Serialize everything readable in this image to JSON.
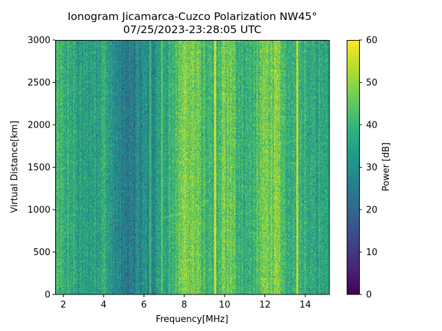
{
  "chart_data": {
    "type": "heatmap",
    "title_line1": "Ionogram Jicamarca-Cuzco Polarization NW45°",
    "title_line2": "07/25/2023-23:28:05 UTC",
    "xlabel": "Frequency[MHz]",
    "ylabel": "Virtual Distance[km]",
    "xlim": [
      1.6,
      15.2
    ],
    "ylim": [
      0,
      3000
    ],
    "x_ticks": [
      2,
      4,
      6,
      8,
      10,
      12,
      14
    ],
    "x_tick_labels": [
      "2",
      "4",
      "6",
      "8",
      "10",
      "12",
      "14"
    ],
    "y_ticks": [
      0,
      500,
      1000,
      1500,
      2000,
      2500,
      3000
    ],
    "y_tick_labels": [
      "0",
      "500",
      "1000",
      "1500",
      "2000",
      "2500",
      "3000"
    ],
    "colorbar": {
      "label": "Power [dB]",
      "colormap": "viridis",
      "vmin": 0,
      "vmax": 60,
      "ticks": [
        0,
        10,
        20,
        30,
        40,
        50,
        60
      ],
      "tick_labels": [
        "0",
        "10",
        "20",
        "30",
        "40",
        "50",
        "60"
      ]
    },
    "band_profile": {
      "frequency_mhz": [
        1.6,
        2.0,
        2.6,
        3.0,
        3.5,
        4.0,
        4.5,
        5.0,
        5.5,
        6.0,
        6.4,
        7.0,
        7.5,
        8.0,
        8.5,
        9.0,
        9.5,
        10.0,
        10.5,
        11.0,
        11.5,
        12.0,
        12.5,
        13.0,
        13.5,
        14.0,
        14.5,
        15.2
      ],
      "mean_power_db": [
        40,
        38,
        36,
        33,
        35,
        38,
        30,
        24,
        26,
        30,
        28,
        37,
        40,
        49,
        47,
        41,
        36,
        47,
        43,
        38,
        40,
        47,
        48,
        40,
        36,
        40,
        36,
        38
      ]
    },
    "narrow_lines": [
      {
        "frequency_mhz": 9.52,
        "power_db": 56
      },
      {
        "frequency_mhz": 13.62,
        "power_db": 55
      },
      {
        "frequency_mhz": 6.9,
        "power_db": 44
      },
      {
        "frequency_mhz": 6.3,
        "power_db": 40
      }
    ],
    "echo_trace": {
      "frequency_mhz": [
        6.9,
        7.3,
        7.7,
        8.0,
        8.4,
        8.8,
        9.2
      ],
      "distance_km": [
        900,
        920,
        945,
        960,
        1000,
        1040,
        1120
      ],
      "power_db": 48
    }
  },
  "colors": {
    "viridis": [
      "#440154",
      "#482878",
      "#3e4989",
      "#31688e",
      "#26828e",
      "#1f9e89",
      "#35b779",
      "#6ece58",
      "#b5de2b",
      "#fde725"
    ],
    "text": "#000000",
    "axes": "#000000"
  }
}
